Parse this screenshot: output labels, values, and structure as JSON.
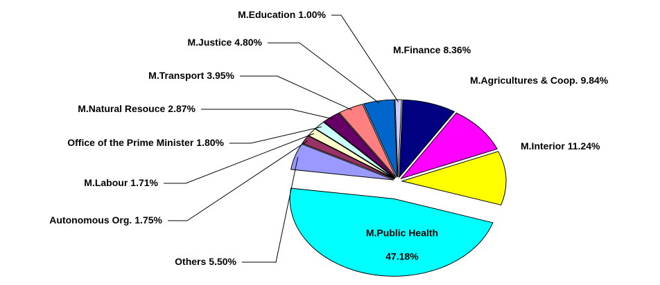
{
  "chart_data": {
    "type": "pie",
    "categories": [
      "M.Finance",
      "M.Agricultures & Coop.",
      "M.Interior",
      "M.Public Health",
      "Others",
      "Autonomous Org.",
      "M.Labour",
      "Office of the Prime Minister",
      "M.Natural Resouce",
      "M.Transport",
      "M.Justice",
      "M.Education"
    ],
    "values": [
      8.36,
      9.84,
      11.24,
      47.18,
      5.5,
      1.75,
      1.71,
      1.8,
      2.87,
      3.95,
      4.8,
      1.0
    ],
    "value_labels": [
      "8.36%",
      "9.84%",
      "11.24%",
      "47.18%",
      "5.50%",
      "1.75%",
      "1.71%",
      "1.80%",
      "2.87%",
      "3.95%",
      "4.80%",
      "1.00%"
    ],
    "colors": [
      "#000080",
      "#ff00ff",
      "#ffff00",
      "#00ffff",
      "#9999ff",
      "#993366",
      "#ffffcc",
      "#ccffff",
      "#660066",
      "#ff8080",
      "#0066cc",
      "#ccccff"
    ]
  }
}
